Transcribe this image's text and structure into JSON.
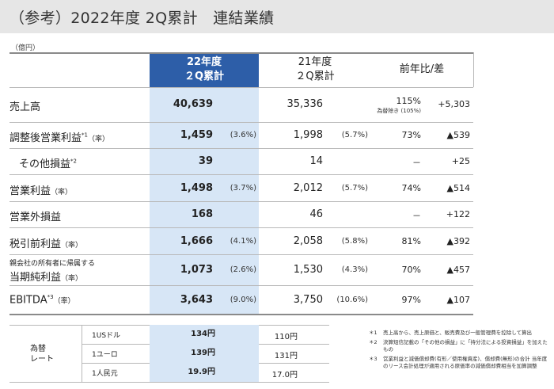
{
  "title": "（参考）2022年度 2Q累計　連結業績",
  "unit": "（億円）",
  "headers": {
    "current_line1": "22年度",
    "current_line2": "２Q累計",
    "prev_line1": "21年度",
    "prev_line2": "２Q累計",
    "diff": "前年比/差"
  },
  "rows": [
    {
      "label": "売上高",
      "sup": "",
      "rate": "",
      "current": "40,639",
      "current_pct": "",
      "prev": "35,336",
      "prev_pct": "",
      "yoy": "115%",
      "yoy_note": "為替除き (105%)",
      "delta": "+5,303"
    },
    {
      "label": "調整後営業利益",
      "sup": "*1",
      "rate": "（率）",
      "current": "1,459",
      "current_pct": "(3.6%)",
      "prev": "1,998",
      "prev_pct": "(5.7%)",
      "yoy": "73%",
      "yoy_note": "",
      "delta": "▲539"
    },
    {
      "label": "その他損益",
      "sup": "*2",
      "rate": "",
      "current": "39",
      "current_pct": "",
      "prev": "14",
      "prev_pct": "",
      "yoy": "－",
      "yoy_note": "",
      "delta": "+25"
    },
    {
      "label": "営業利益",
      "sup": "",
      "rate": "（率）",
      "current": "1,498",
      "current_pct": "(3.7%)",
      "prev": "2,012",
      "prev_pct": "(5.7%)",
      "yoy": "74%",
      "yoy_note": "",
      "delta": "▲514"
    },
    {
      "label": "営業外損益",
      "sup": "",
      "rate": "",
      "current": "168",
      "current_pct": "",
      "prev": "46",
      "prev_pct": "",
      "yoy": "－",
      "yoy_note": "",
      "delta": "+122"
    },
    {
      "label": "税引前利益",
      "sup": "",
      "rate": "（率）",
      "current": "1,666",
      "current_pct": "(4.1%)",
      "prev": "2,058",
      "prev_pct": "(5.8%)",
      "yoy": "81%",
      "yoy_note": "",
      "delta": "▲392"
    },
    {
      "label": "当期純利益",
      "label_small": "親会社の所有者に帰属する",
      "sup": "",
      "rate": "（率）",
      "current": "1,073",
      "current_pct": "(2.6%)",
      "prev": "1,530",
      "prev_pct": "(4.3%)",
      "yoy": "70%",
      "yoy_note": "",
      "delta": "▲457"
    },
    {
      "label": "EBITDA",
      "sup": "*3",
      "rate": "（率）",
      "current": "3,643",
      "current_pct": "(9.0%)",
      "prev": "3,750",
      "prev_pct": "(10.6%)",
      "yoy": "97%",
      "yoy_note": "",
      "delta": "▲107"
    }
  ],
  "fx": {
    "label_line1": "為替",
    "label_line2": "レート",
    "rows": [
      {
        "currency": "1USドル",
        "current": "134円",
        "prev": "110円"
      },
      {
        "currency": "1ユーロ",
        "current": "139円",
        "prev": "131円"
      },
      {
        "currency": "1人民元",
        "current": "19.9円",
        "prev": "17.0円"
      }
    ]
  },
  "notes": [
    {
      "mark": "＊1",
      "text": "売上高から、売上原価と、販売費及び一般管理費を控除して算出"
    },
    {
      "mark": "＊2",
      "text": "決算短信記載の「その他の損益」に「持分法による投資損益」を加えたもの"
    },
    {
      "mark": "＊3",
      "text": "営業利益と減価償却費(有形／使用権資産)、償却費(無形)の合計 当年度のリース会計処理が適用される原価率の減価償却費相当を加算調整"
    }
  ]
}
